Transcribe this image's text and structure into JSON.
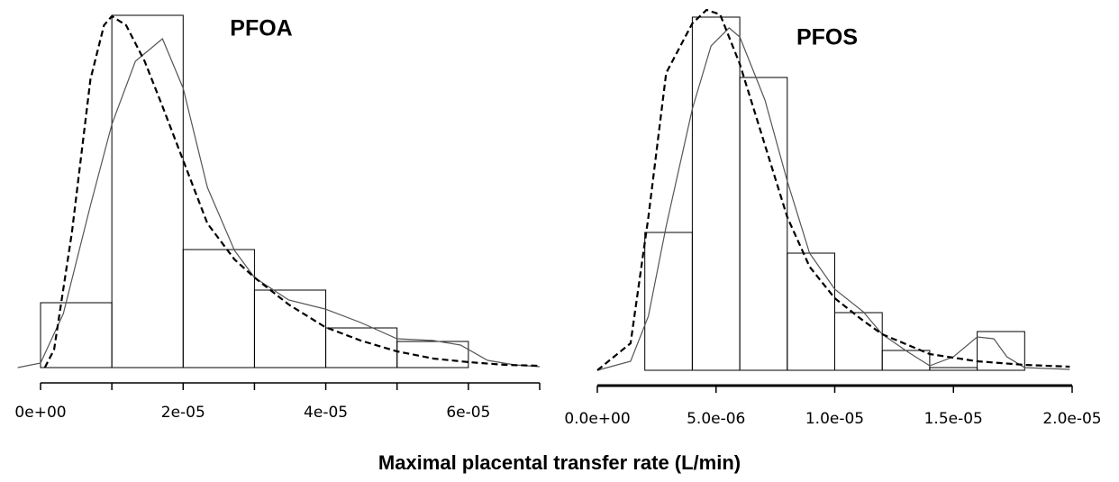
{
  "xlabel": "Maximal placental transfer rate (L/min)",
  "chart_data": [
    {
      "type": "histogram",
      "title": "PFOA",
      "bins": [
        0,
        1e-05,
        2e-05,
        3e-05,
        4e-05,
        5e-05,
        6e-05
      ],
      "values": [
        72,
        391,
        131,
        86,
        44,
        29
      ],
      "color": "#000000",
      "xlim": [
        0,
        7e-05
      ],
      "ylim": [
        0,
        400
      ],
      "xticks": [
        {
          "value": 0,
          "label": "0e+00"
        },
        {
          "value": 2e-05,
          "label": "2e-05"
        },
        {
          "value": 4e-05,
          "label": "4e-05"
        },
        {
          "value": 6e-05,
          "label": "6e-05"
        }
      ],
      "minor_xticks": [
        1e-05,
        3e-05,
        5e-05,
        7e-05
      ],
      "curves": [
        {
          "style": "solid",
          "color": "#555555",
          "x": [
            -3.2e-06,
            0,
            3.2e-06,
            7e-06,
            1e-05,
            1.33e-05,
            1.71e-05,
            2e-05,
            2.34e-05,
            2.72e-05,
            3e-05,
            3.48e-05,
            3.99e-05,
            4.49e-05,
            5e-05,
            5.51e-05,
            5.89e-05,
            6.27e-05,
            6.65e-05,
            7e-05
          ],
          "y": [
            0,
            5,
            60,
            180,
            270,
            340,
            365,
            310,
            200,
            130,
            100,
            75,
            65,
            50,
            32,
            30,
            25,
            8,
            3,
            1
          ]
        },
        {
          "style": "dashed",
          "color": "#000000",
          "x": [
            6e-07,
            1.9e-06,
            4.4e-06,
            7e-06,
            8.9e-06,
            1e-05,
            1.2e-05,
            1.46e-05,
            1.71e-05,
            2e-05,
            2.34e-05,
            2.72e-05,
            3e-05,
            3.48e-05,
            3.99e-05,
            4.49e-05,
            5e-05,
            5.51e-05,
            6.01e-05,
            6.52e-05,
            7e-05
          ],
          "y": [
            0,
            20,
            150,
            320,
            380,
            390,
            380,
            340,
            290,
            230,
            160,
            120,
            100,
            70,
            45,
            30,
            18,
            10,
            6,
            3,
            2
          ]
        }
      ]
    },
    {
      "type": "histogram",
      "title": "PFOS",
      "bins": [
        2e-06,
        4e-06,
        6e-06,
        8e-06,
        1e-05,
        1.2e-05,
        1.4e-05,
        1.6e-05,
        1.8e-05
      ],
      "values": [
        153,
        392,
        325,
        130,
        64,
        22,
        3,
        43
      ],
      "color": "#000000",
      "xlim": [
        0,
        2e-05
      ],
      "ylim": [
        0,
        400
      ],
      "xticks": [
        {
          "value": 0,
          "label": "0.0e+00"
        },
        {
          "value": 5e-06,
          "label": "5.0e-06"
        },
        {
          "value": 1e-05,
          "label": "1.0e-05"
        },
        {
          "value": 1.5e-05,
          "label": "1.5e-05"
        },
        {
          "value": 2e-05,
          "label": "2.0e-05"
        }
      ],
      "curves": [
        {
          "style": "solid",
          "color": "#555555",
          "x": [
            0,
            1.4e-06,
            2.15e-06,
            2.9e-06,
            4e-06,
            4.79e-06,
            5.55e-06,
            6e-06,
            7.06e-06,
            8e-06,
            8.94e-06,
            1e-05,
            1.12e-05,
            1.2e-05,
            1.31e-05,
            1.4e-05,
            1.5e-05,
            1.6e-05,
            1.67e-05,
            1.725e-05,
            1.8e-05,
            1.99e-05
          ],
          "y": [
            0,
            10,
            60,
            160,
            290,
            360,
            380,
            370,
            300,
            210,
            130,
            90,
            65,
            40,
            20,
            5,
            15,
            37,
            35,
            15,
            3,
            1
          ]
        },
        {
          "style": "dashed",
          "color": "#000000",
          "x": [
            0,
            1.4e-06,
            2.15e-06,
            2.9e-06,
            4e-06,
            4.6e-06,
            5.17e-06,
            6e-06,
            7.06e-06,
            8e-06,
            8.94e-06,
            1e-05,
            1.12e-05,
            1.2e-05,
            1.4e-05,
            1.6e-05,
            1.8e-05,
            1.99e-05
          ],
          "y": [
            0,
            30,
            170,
            330,
            385,
            400,
            395,
            340,
            250,
            170,
            115,
            80,
            55,
            40,
            18,
            10,
            6,
            4
          ]
        }
      ]
    }
  ]
}
